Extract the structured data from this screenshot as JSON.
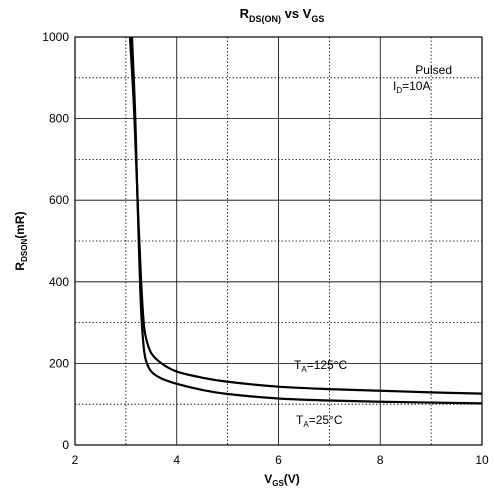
{
  "chart_data": {
    "type": "line",
    "title": "R_DS(ON) vs V_GS",
    "title_parts": {
      "main": "R",
      "sub": "DS(ON)",
      "mid": " vs V",
      "sub2": "GS"
    },
    "xlabel": "V_GS(V)",
    "xlabel_parts": {
      "main": "V",
      "sub": "GS",
      "tail": "(V)"
    },
    "ylabel": "R_DSON(mR)",
    "ylabel_parts": {
      "main": "R",
      "sub": "DSON",
      "tail": "(mR)"
    },
    "xlim": [
      2,
      10
    ],
    "ylim": [
      0,
      1000
    ],
    "xticks": [
      "2",
      "4",
      "6",
      "8",
      "10"
    ],
    "yticks": [
      "0",
      "200",
      "400",
      "600",
      "800",
      "1000"
    ],
    "grid": true,
    "annotations": {
      "cond1": "Pulsed",
      "cond2_main": "I",
      "cond2_sub": "D",
      "cond2_tail": "=10A"
    },
    "series": [
      {
        "name": "T_A=125°C",
        "label_parts": {
          "main": "T",
          "sub": "A",
          "tail": "=125°C"
        },
        "x": [
          3.08,
          3.15,
          3.2,
          3.25,
          3.3,
          3.35,
          3.4,
          3.5,
          3.7,
          4.0,
          4.5,
          5.0,
          6.0,
          7.0,
          8.0,
          9.0,
          10.0
        ],
        "y": [
          1000,
          850,
          700,
          540,
          400,
          300,
          260,
          225,
          200,
          180,
          165,
          155,
          143,
          137,
          133,
          129,
          126
        ]
      },
      {
        "name": "T_A=25°C",
        "label_parts": {
          "main": "T",
          "sub": "A",
          "tail": "=25°C"
        },
        "x": [
          3.12,
          3.18,
          3.22,
          3.26,
          3.3,
          3.35,
          3.4,
          3.5,
          3.7,
          4.0,
          4.5,
          5.0,
          6.0,
          7.0,
          8.0,
          9.0,
          10.0
        ],
        "y": [
          1000,
          820,
          640,
          470,
          330,
          240,
          205,
          180,
          163,
          150,
          135,
          125,
          114,
          109,
          106,
          104,
          102
        ]
      }
    ]
  }
}
